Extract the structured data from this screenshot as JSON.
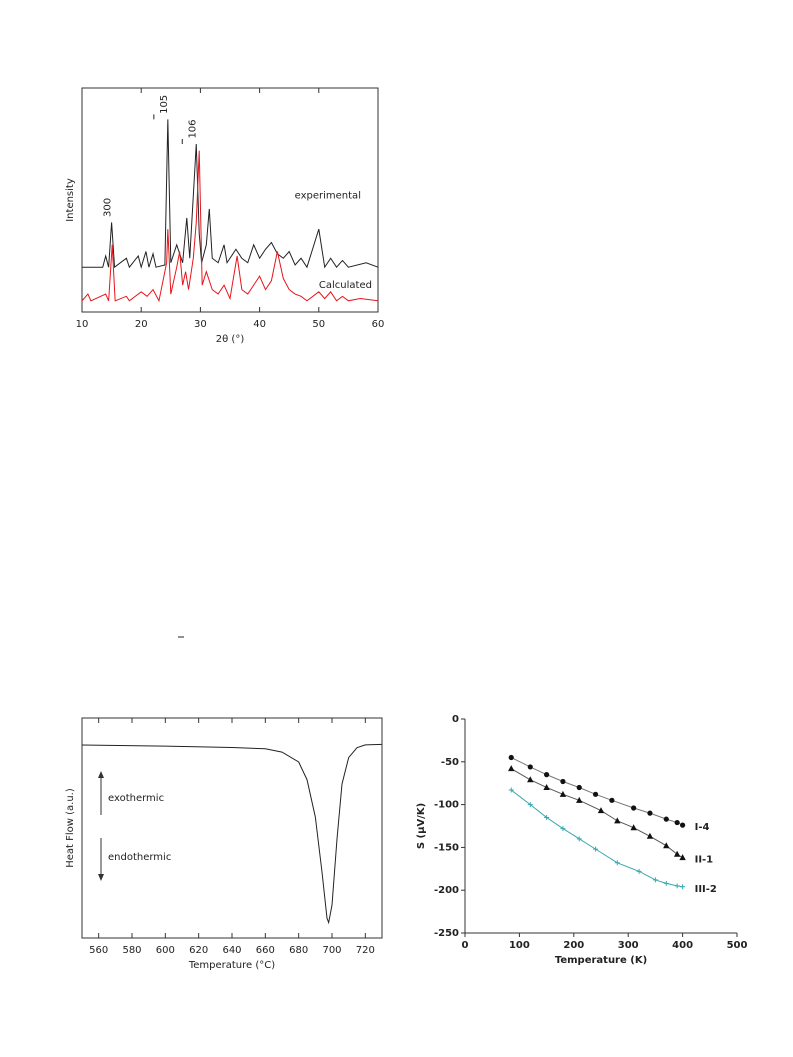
{
  "chart_data": [
    {
      "type": "line",
      "xlabel": "2θ (°)",
      "ylabel": "Intensity",
      "xlim": [
        10,
        60
      ],
      "xticks": [
        10,
        20,
        30,
        40,
        50,
        60
      ],
      "ylim": [
        0,
        100
      ],
      "annotations": [
        {
          "text": "300",
          "x": 15
        },
        {
          "text": "105",
          "x": 24.5
        },
        {
          "text": "106",
          "x": 29.3
        }
      ],
      "series": [
        {
          "name": "experimental",
          "color": "#222222",
          "x": [
            10,
            13.5,
            14,
            14.5,
            15,
            15.5,
            17.5,
            18,
            19.5,
            20,
            20.8,
            21.3,
            22,
            22.5,
            24,
            24.5,
            25,
            26,
            26.5,
            27,
            27.7,
            28.2,
            29.3,
            29.8,
            30.2,
            31,
            31.5,
            32,
            33,
            34,
            34.5,
            36,
            37,
            38,
            39,
            40,
            41,
            42,
            43,
            44,
            45,
            46,
            47,
            48,
            50,
            51,
            52,
            53,
            54,
            55,
            58,
            60
          ],
          "values": [
            20,
            20,
            25,
            20,
            40,
            20,
            24,
            20,
            25,
            20,
            27,
            20,
            26,
            20,
            21,
            86,
            22,
            30,
            26,
            22,
            42,
            24,
            75,
            35,
            22,
            30,
            46,
            24,
            22,
            30,
            22,
            28,
            24,
            22,
            30,
            24,
            28,
            31,
            26,
            24,
            27,
            21,
            24,
            20,
            37,
            20,
            24,
            20,
            23,
            20,
            22,
            20
          ]
        },
        {
          "name": "Calculated",
          "color": "#e8141b",
          "x": [
            10,
            11,
            11.5,
            14,
            14.5,
            15.1,
            15.6,
            17.5,
            18,
            20,
            21,
            22,
            23,
            24.3,
            24.5,
            25,
            26,
            26.5,
            27,
            27.5,
            28,
            28.8,
            29.3,
            29.8,
            30.3,
            31,
            32,
            33,
            34,
            35,
            36.2,
            37,
            38,
            39,
            40,
            41,
            42,
            43,
            44,
            45,
            46,
            47,
            48,
            50,
            51,
            52,
            53,
            54,
            55,
            57,
            60
          ],
          "values": [
            5,
            8,
            5,
            8,
            5,
            30,
            5,
            7,
            5,
            9,
            7,
            10,
            5,
            22,
            37,
            8,
            20,
            27,
            12,
            18,
            10,
            24,
            40,
            72,
            12,
            18,
            10,
            8,
            12,
            6,
            25,
            10,
            8,
            12,
            16,
            10,
            14,
            27,
            15,
            10,
            8,
            7,
            5,
            9,
            6,
            9,
            5,
            7,
            5,
            6,
            5
          ]
        }
      ]
    },
    {
      "type": "line",
      "xlabel": "Temperature (°C)",
      "ylabel": "Heat Flow (a.u.)",
      "xlim": [
        550,
        730
      ],
      "xticks": [
        560,
        580,
        600,
        620,
        640,
        660,
        680,
        700,
        720
      ],
      "ylim": [
        0,
        100
      ],
      "annotations": [
        {
          "text": "exothermic"
        },
        {
          "text": "endothermic"
        }
      ],
      "series": [
        {
          "color": "#222222",
          "x": [
            550,
            600,
            640,
            660,
            670,
            680,
            685,
            690,
            694,
            697,
            698,
            700,
            703,
            706,
            710,
            715,
            720,
            730
          ],
          "values": [
            87.7,
            87.2,
            86.6,
            86,
            84.5,
            80,
            72,
            55,
            30,
            9,
            7,
            15,
            45,
            70,
            82,
            86.5,
            87.8,
            88
          ]
        }
      ]
    },
    {
      "type": "scatter",
      "xlabel": "Temperature (K)",
      "ylabel": "S (μV/K)",
      "xlim": [
        0,
        500
      ],
      "xticks": [
        0,
        100,
        200,
        300,
        400,
        500
      ],
      "ylim": [
        -250,
        0
      ],
      "yticks": [
        -250,
        -200,
        -150,
        -100,
        -50,
        0
      ],
      "series": [
        {
          "name": "I-4",
          "color": "#111111",
          "marker": "circle",
          "line_color": "#777777",
          "x": [
            85,
            120,
            150,
            180,
            210,
            240,
            270,
            310,
            340,
            370,
            390,
            400
          ],
          "values": [
            -45,
            -56,
            -65,
            -73,
            -80,
            -88,
            -95,
            -104,
            -110,
            -117,
            -121,
            -124
          ]
        },
        {
          "name": "II-1",
          "color": "#111111",
          "marker": "triangle",
          "line_color": "#555555",
          "x": [
            85,
            120,
            150,
            180,
            210,
            250,
            280,
            310,
            340,
            370,
            390,
            400
          ],
          "values": [
            -58,
            -71,
            -80,
            -88,
            -95,
            -107,
            -119,
            -127,
            -137,
            -148,
            -158,
            -162
          ]
        },
        {
          "name": "III-2",
          "color": "#3aa8b0",
          "marker": "cross",
          "line_color": "#3aa8b0",
          "x": [
            85,
            120,
            150,
            180,
            210,
            240,
            280,
            320,
            350,
            370,
            390,
            400
          ],
          "values": [
            -83,
            -100,
            -115,
            -128,
            -140,
            -152,
            -168,
            -178,
            -188,
            -192,
            -195,
            -196
          ]
        }
      ]
    }
  ]
}
